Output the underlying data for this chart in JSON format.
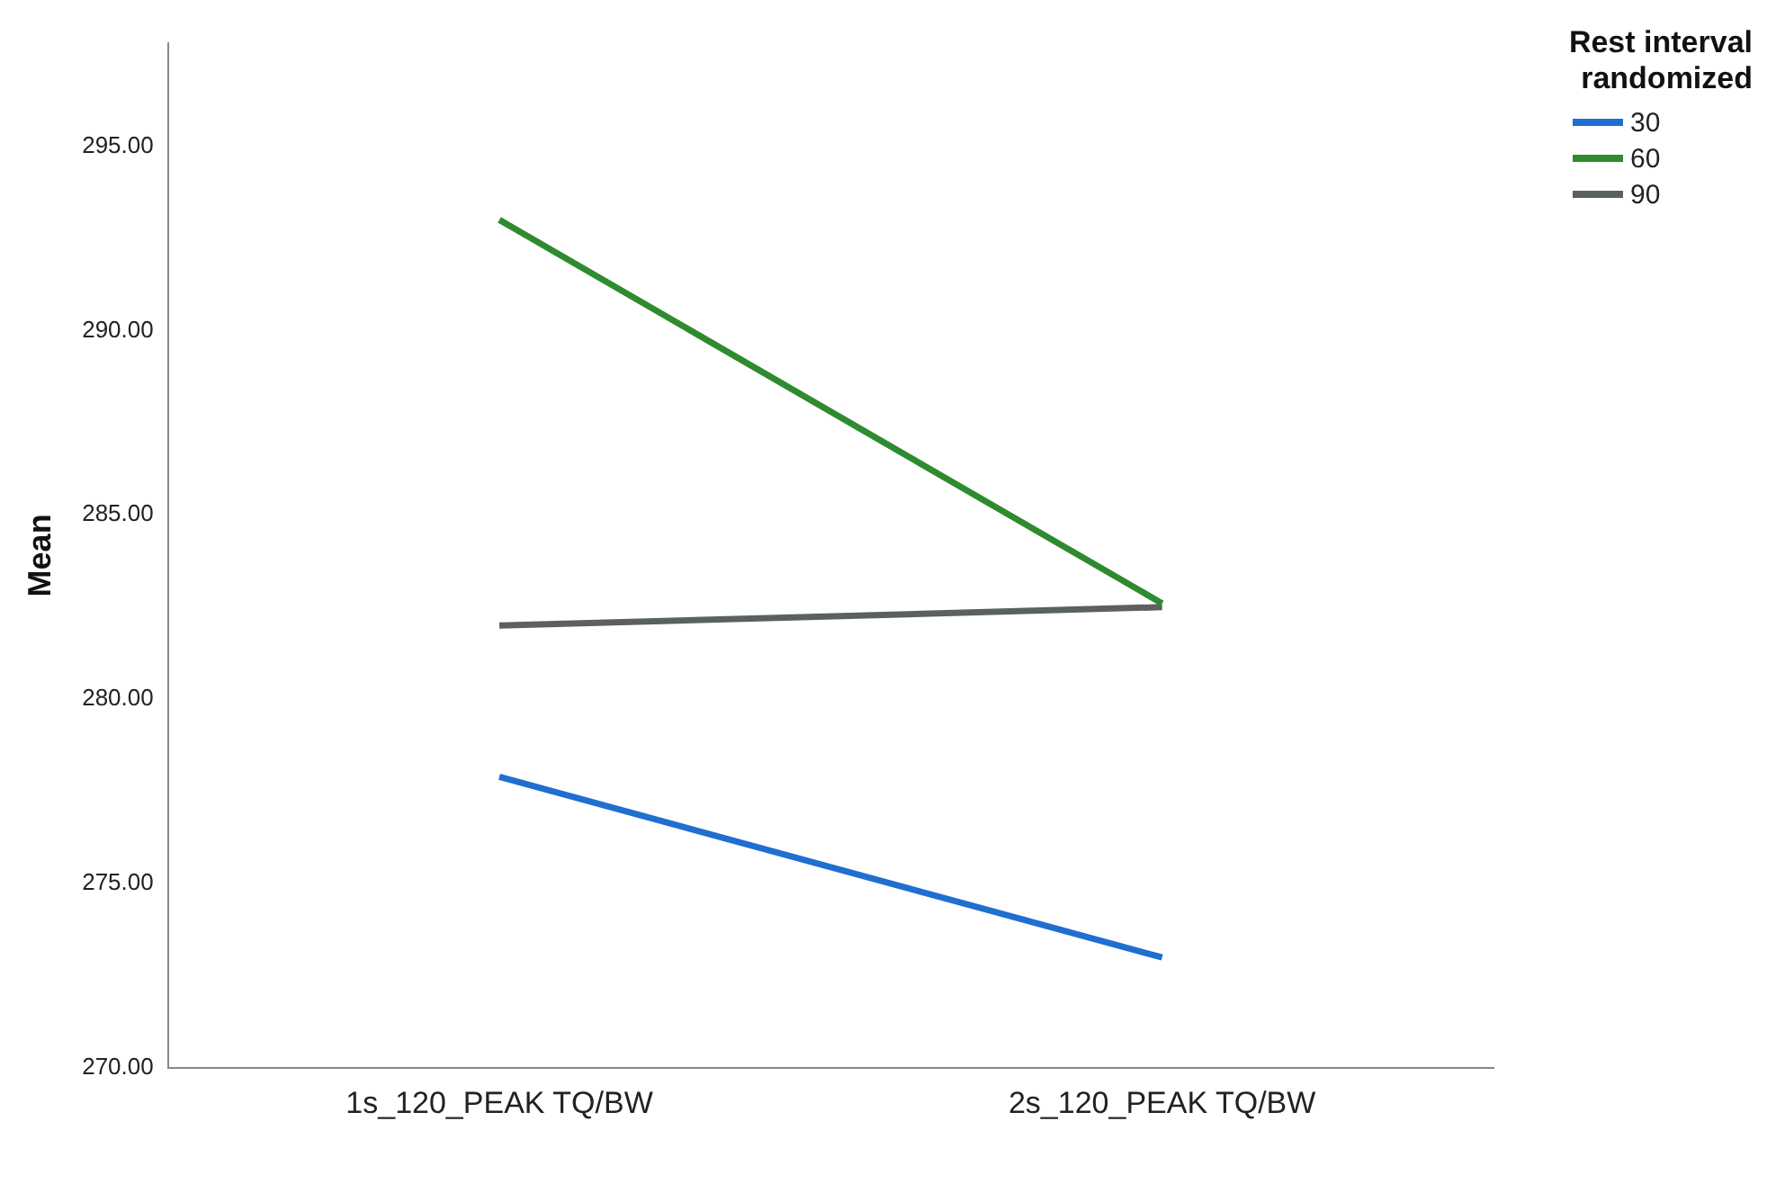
{
  "chart_data": {
    "type": "line",
    "ylabel": "Mean",
    "legend_title": "Rest interval randomized",
    "legend": "top right",
    "grid": false,
    "marker": "none",
    "line_style": "solid",
    "categories": [
      "1s_120_PEAK TQ/BW",
      "2s_120_PEAK TQ/BW"
    ],
    "ylim": [
      270,
      297.8
    ],
    "yticks": [
      {
        "value": 270,
        "label": "270.00"
      },
      {
        "value": 275,
        "label": "275.00"
      },
      {
        "value": 280,
        "label": "280.00"
      },
      {
        "value": 285,
        "label": "285.00"
      },
      {
        "value": 290,
        "label": "290.00"
      },
      {
        "value": 295,
        "label": "295.00"
      }
    ],
    "series": [
      {
        "name": "30",
        "color": "#1f6fd1",
        "values": [
          277.9,
          273.0
        ]
      },
      {
        "name": "60",
        "color": "#2e8b2e",
        "values": [
          293.0,
          282.6
        ]
      },
      {
        "name": "90",
        "color": "#5a6160",
        "values": [
          282.0,
          282.5
        ]
      }
    ]
  }
}
